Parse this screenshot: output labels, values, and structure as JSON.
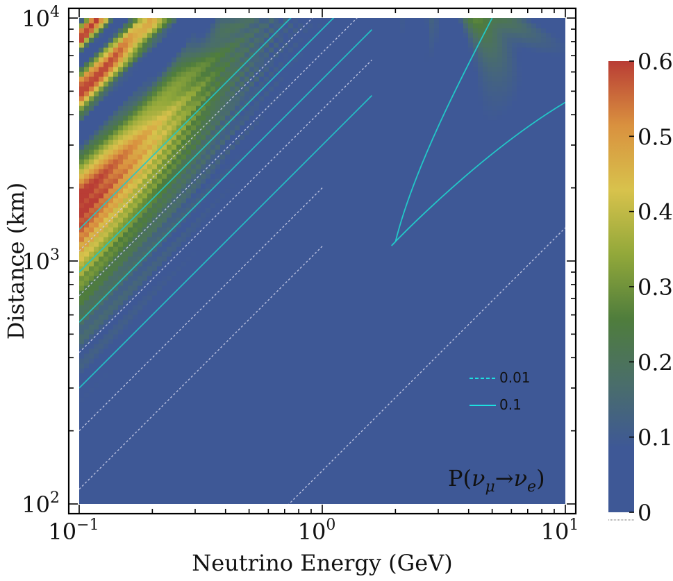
{
  "chart_data": {
    "type": "heatmap",
    "title": "",
    "annotation": "P(ν_μ→ν_e)",
    "annotation_parts": {
      "p": "P(",
      "nu1": "ν",
      "sub1": "μ",
      "arrow": "→",
      "nu2": "ν",
      "sub2": "e",
      "close": ")"
    },
    "xlabel": "Neutrino Energy (GeV)",
    "ylabel": "Distance (km)",
    "x_scale": "log",
    "y_scale": "log",
    "xlim": [
      0.1,
      10
    ],
    "ylim": [
      100,
      10000
    ],
    "x_ticks": [
      {
        "value": 0.1,
        "base": "10",
        "exp": "−1"
      },
      {
        "value": 1,
        "base": "10",
        "exp": "0"
      },
      {
        "value": 10,
        "base": "10",
        "exp": "1"
      }
    ],
    "y_ticks": [
      {
        "value": 100,
        "base": "10",
        "exp": "2"
      },
      {
        "value": 1000,
        "base": "10",
        "exp": "3"
      },
      {
        "value": 10000,
        "base": "10",
        "exp": "4"
      }
    ],
    "colorbar": {
      "min": 0,
      "max": 0.6,
      "ticks": [
        "0",
        "0.1",
        "0.2",
        "0.3",
        "0.4",
        "0.5",
        "0.6"
      ],
      "colors": [
        "#3e5896",
        "#3e5896",
        "#4a6e6a",
        "#4f7d3c",
        "#92a83a",
        "#d8c24c",
        "#d9913f",
        "#b93d35"
      ]
    },
    "contours": [
      {
        "level": "0.01",
        "style": "dashed",
        "color": "#c8cde8"
      },
      {
        "level": "0.1",
        "style": "solid",
        "color": "#22c8c8"
      }
    ],
    "legend": [
      {
        "label": "0.01",
        "style": "dashed",
        "color": "#1ee0e0"
      },
      {
        "label": "0.1",
        "style": "solid",
        "color": "#1ee0e0"
      }
    ],
    "grid": false,
    "legend_position": "lower-right"
  }
}
